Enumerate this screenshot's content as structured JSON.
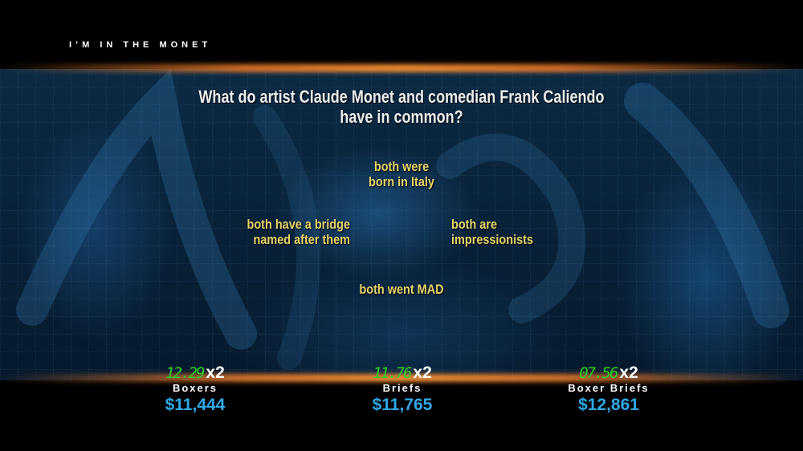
{
  "game": {
    "category_title": "I’M IN THE MONET",
    "question": "What do artist Claude Monet and comedian Frank Caliendo have in common?",
    "answers": {
      "top": [
        "both were",
        "born in Italy"
      ],
      "left": [
        "both have a bridge",
        "named after them"
      ],
      "right": [
        "both are",
        "impressionists"
      ],
      "bottom": [
        "both went MAD"
      ]
    }
  },
  "players": [
    {
      "timer": "12.29",
      "multiplier": "x2",
      "name": "Boxers",
      "score": "$11,444"
    },
    {
      "timer": "11.76",
      "multiplier": "x2",
      "name": "Briefs",
      "score": "$11,765"
    },
    {
      "timer": "07.56",
      "multiplier": "x2",
      "name": "Boxer Briefs",
      "score": "$12,861"
    }
  ],
  "colors": {
    "answer_text": "#e8d36a",
    "timer": "#2bd22b",
    "score": "#2fa9ea",
    "glow": "#f08c32"
  }
}
